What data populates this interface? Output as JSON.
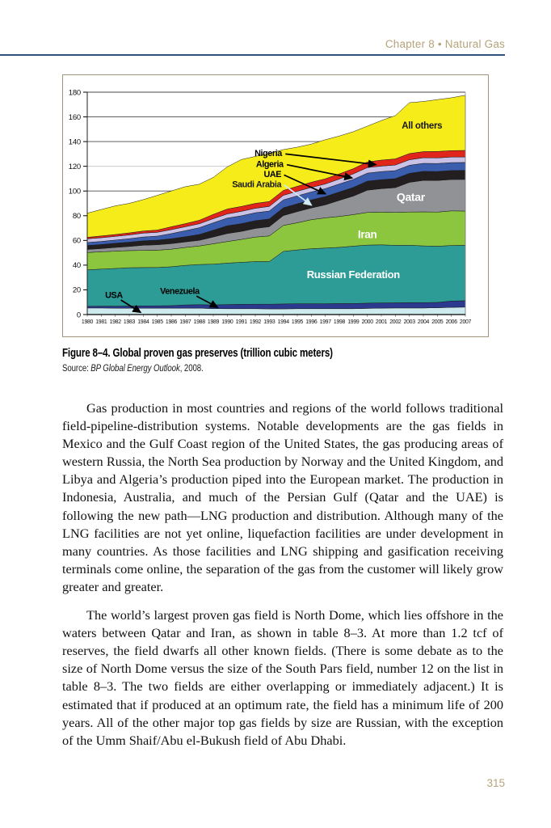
{
  "page": {
    "running_head": "Chapter 8 • Natural Gas",
    "page_number": "315",
    "accent_color": "#b5a37c",
    "rule_color": "#31517e"
  },
  "figure": {
    "caption": "Figure 8–4. Global proven gas preserves (trillion cubic meters)",
    "source_prefix": "Source: ",
    "source_title": "BP Global Energy Outlook",
    "source_suffix": ", 2008."
  },
  "paragraphs": [
    "Gas production in most countries and regions of the world follows traditional field-pipeline-distribution systems. Notable developments are the gas fields in Mexico and the Gulf Coast region of the United States, the gas producing areas of western Russia, the North Sea production by Norway and the United Kingdom, and Libya and Algeria’s production piped into the European market. The production in Indonesia, Australia, and much of the Persian Gulf (Qatar and the UAE) is following the new path—LNG production and distribution. Although many of the LNG facilities are not yet online, liquefaction facilities are under development in many countries. As those facilities and LNG shipping and gasification receiving terminals come online, the separation of the gas from the customer will likely grow greater and greater.",
    "The world’s largest proven gas field is North Dome, which lies offshore in the waters between Qatar and Iran, as shown in table 8–3. At more than 1.2 tcf of reserves, the field dwarfs all other known fields. (There is some debate as to the size of North Dome versus the size of the South Pars field, number 12 on the list in table 8–3. The two fields are either overlapping or immediately adjacent.) It is estimated that if produced at an optimum rate, the field has a minimum life of 200 years. All of the other major top gas fields by size are Russian, with the exception of the Umm Shaif/Abu el-Bukush field of Abu Dhabi."
  ],
  "chart_data": {
    "type": "area",
    "stacked": true,
    "title": "Global proven gas preserves (trillion cubic meters)",
    "xlabel": "",
    "ylabel": "",
    "ylim": [
      0,
      180
    ],
    "yticks": [
      0,
      20,
      40,
      60,
      80,
      100,
      120,
      140,
      160,
      180
    ],
    "light_gridline": 120,
    "grid": true,
    "legend_position": "in-plot labels with arrows",
    "x": [
      1980,
      1981,
      1982,
      1983,
      1984,
      1985,
      1986,
      1987,
      1988,
      1989,
      1990,
      1991,
      1992,
      1993,
      1994,
      1995,
      1996,
      1997,
      1998,
      1999,
      2000,
      2001,
      2002,
      2003,
      2004,
      2005,
      2006,
      2007
    ],
    "series": [
      {
        "name": "USA",
        "color": "#cdebee",
        "values": [
          5.3,
          5.3,
          5.2,
          5.2,
          5.2,
          5.2,
          5.2,
          5.2,
          5.2,
          4.8,
          4.7,
          4.7,
          4.7,
          4.6,
          4.6,
          4.7,
          4.7,
          4.7,
          4.7,
          4.7,
          5.0,
          5.2,
          5.3,
          5.3,
          5.3,
          5.5,
          5.8,
          6.0
        ]
      },
      {
        "name": "Venezuela",
        "color": "#2b3a8f",
        "values": [
          1.4,
          1.5,
          1.6,
          1.7,
          1.8,
          1.9,
          2.0,
          2.6,
          2.8,
          3.0,
          3.4,
          3.6,
          3.7,
          3.8,
          4.0,
          4.1,
          4.1,
          4.1,
          4.2,
          4.2,
          4.2,
          4.2,
          4.2,
          4.3,
          4.3,
          4.3,
          5.1,
          5.2
        ]
      },
      {
        "name": "Russian Federation",
        "color": "#2d9c96",
        "values": [
          29.5,
          30.0,
          30.5,
          31.0,
          31.0,
          31.0,
          31.5,
          32.0,
          32.5,
          33.0,
          33.5,
          34.0,
          34.5,
          34.5,
          42.5,
          43.5,
          44.5,
          45.0,
          45.5,
          46.5,
          47.0,
          47.0,
          46.5,
          46.5,
          46.0,
          45.5,
          45.0,
          44.8
        ]
      },
      {
        "name": "Iran",
        "color": "#8cc63e",
        "values": [
          14.0,
          14.0,
          14.0,
          13.9,
          13.9,
          14.0,
          14.2,
          14.5,
          15.0,
          16.5,
          17.5,
          18.5,
          19.8,
          20.7,
          21.0,
          22.0,
          23.5,
          24.5,
          25.0,
          25.5,
          26.5,
          26.5,
          26.7,
          26.9,
          27.5,
          27.6,
          28.0,
          27.8
        ]
      },
      {
        "name": "Qatar",
        "color": "#909296",
        "values": [
          2.5,
          2.6,
          3.0,
          3.3,
          4.2,
          4.4,
          4.5,
          4.5,
          4.6,
          5.5,
          6.5,
          6.5,
          7.0,
          7.5,
          8.0,
          9.0,
          9.5,
          10.5,
          13.0,
          15.0,
          18.0,
          19.0,
          20.0,
          24.0,
          25.5,
          25.6,
          25.4,
          25.6
        ]
      },
      {
        "name": "Saudi Arabia",
        "color": "#231f20",
        "values": [
          3.2,
          3.3,
          3.4,
          3.5,
          3.6,
          3.7,
          4.0,
          4.2,
          4.7,
          5.5,
          6.3,
          6.3,
          6.3,
          6.3,
          6.3,
          6.4,
          6.5,
          6.7,
          6.8,
          7.0,
          7.3,
          7.3,
          7.3,
          7.3,
          7.3,
          7.3,
          7.3,
          7.3
        ]
      },
      {
        "name": "UAE",
        "color": "#3a5dad",
        "values": [
          2.4,
          2.5,
          2.6,
          2.8,
          3.1,
          3.3,
          4.1,
          4.9,
          5.5,
          6.0,
          6.2,
          6.3,
          6.4,
          6.4,
          6.4,
          6.4,
          6.4,
          6.4,
          6.5,
          6.5,
          6.5,
          6.5,
          6.5,
          6.5,
          6.5,
          6.5,
          6.4,
          6.4
        ]
      },
      {
        "name": "Algeria",
        "color": "#c9c2e6",
        "values": [
          3.0,
          3.0,
          3.0,
          3.1,
          3.1,
          3.1,
          3.2,
          3.2,
          3.2,
          3.3,
          3.3,
          3.6,
          3.6,
          3.7,
          3.7,
          3.7,
          3.7,
          3.8,
          4.0,
          4.5,
          4.5,
          4.5,
          4.5,
          4.5,
          4.5,
          4.5,
          4.5,
          4.5
        ]
      },
      {
        "name": "Nigeria",
        "color": "#e1251b",
        "values": [
          1.2,
          1.4,
          1.5,
          1.6,
          1.7,
          1.8,
          2.4,
          2.5,
          2.8,
          3.5,
          4.0,
          4.0,
          4.0,
          4.0,
          4.0,
          4.0,
          4.2,
          4.2,
          4.2,
          4.2,
          4.5,
          4.8,
          5.0,
          5.0,
          5.0,
          5.2,
          5.2,
          5.3
        ]
      },
      {
        "name": "All others",
        "color": "#f5ec1a",
        "values": [
          19.5,
          21.4,
          23.2,
          23.9,
          25.4,
          28.1,
          28.9,
          29.9,
          29.2,
          29.9,
          34.1,
          38.0,
          38.0,
          39.0,
          33.0,
          31.7,
          30.9,
          31.6,
          30.6,
          29.9,
          29.0,
          32.0,
          35.0,
          41.2,
          40.6,
          42.0,
          42.8,
          44.6
        ]
      }
    ],
    "area_labels": [
      {
        "text": "All others",
        "year": 2003.9,
        "value": 150.5,
        "color": "#1a1a1a",
        "size": 11.5
      },
      {
        "text": "Qatar",
        "year": 2003.1,
        "value": 92.0,
        "color": "#ffffff",
        "size": 14
      },
      {
        "text": "Iran",
        "year": 2000.0,
        "value": 62.0,
        "color": "#ffffff",
        "size": 13.5
      },
      {
        "text": "Russian Federation",
        "year": 1999.0,
        "value": 29.5,
        "color": "#ffffff",
        "size": 13
      }
    ],
    "annotations": [
      {
        "text": "Nigeria",
        "label": [
          1993.9,
          128.3
        ],
        "start": [
          1994.15,
          130.0
        ],
        "target_series": "Nigeria",
        "target_year": 2000.6,
        "color": "#000000",
        "anchor": "end"
      },
      {
        "text": "Algeria",
        "label": [
          1994.0,
          119.6
        ],
        "start": [
          1994.25,
          121.3
        ],
        "target_series": "Algeria",
        "target_year": 1998.9,
        "color": "#000000",
        "anchor": "end"
      },
      {
        "text": "UAE",
        "label": [
          1993.85,
          111.3
        ],
        "start": [
          1994.05,
          113.0
        ],
        "target_series": "UAE",
        "target_year": 1997.0,
        "color": "#000000",
        "anchor": "end"
      },
      {
        "text": "Saudi Arabia",
        "label": [
          1993.85,
          103.2
        ],
        "start": [
          1994.05,
          104.9
        ],
        "target_series": "Saudi Arabia",
        "target_year": 1996.0,
        "color": "#cfe9f2",
        "text_color": "#1a1a1a",
        "anchor": "end"
      },
      {
        "text": "USA",
        "label": [
          1981.9,
          13.3
        ],
        "start": [
          1982.4,
          11.8
        ],
        "target_series": "USA",
        "target_year": 1983.8,
        "color": "#000000",
        "anchor": "middle"
      },
      {
        "text": "Venezuela",
        "label": [
          1986.6,
          16.6
        ],
        "start": [
          1987.8,
          15.0
        ],
        "target_series": "Venezuela",
        "target_year": 1989.3,
        "color": "#000000",
        "anchor": "middle"
      }
    ]
  }
}
